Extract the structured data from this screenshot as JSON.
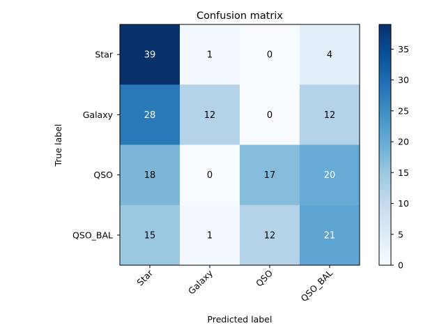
{
  "chart_data": {
    "type": "heatmap",
    "title": "Confusion matrix",
    "xlabel": "Predicted label",
    "ylabel": "True label",
    "x_categories": [
      "Star",
      "Galaxy",
      "QSO",
      "QSO_BAL"
    ],
    "y_categories": [
      "Star",
      "Galaxy",
      "QSO",
      "QSO_BAL"
    ],
    "values": [
      [
        39,
        1,
        0,
        4
      ],
      [
        28,
        12,
        0,
        12
      ],
      [
        18,
        0,
        17,
        20
      ],
      [
        15,
        1,
        12,
        21
      ]
    ],
    "colormap": "Blues",
    "color_range": [
      0,
      39
    ],
    "colorbar_ticks": [
      "0",
      "5",
      "10",
      "15",
      "20",
      "25",
      "30",
      "35"
    ],
    "x_tick_rotation_deg": 45
  }
}
